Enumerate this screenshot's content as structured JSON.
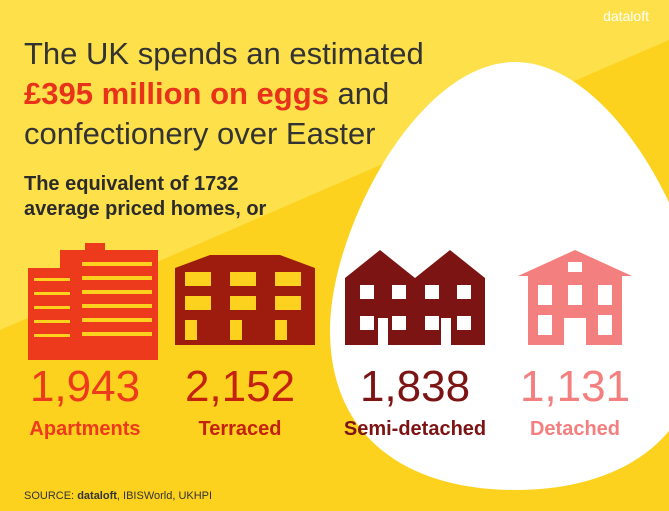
{
  "brand": "dataloft",
  "title": {
    "lines": [
      "The UK spends an estimated",
      "confectionery over Easter"
    ],
    "highlight": "£395 million on eggs",
    "highlight_tail": "and"
  },
  "subtitle": {
    "lines": [
      "The equivalent of 1732",
      "average priced homes, or"
    ]
  },
  "items": [
    {
      "value": "1,943",
      "label": "Apartments",
      "color": "#ee3a1c"
    },
    {
      "value": "2,152",
      "label": "Terraced",
      "color": "#c4210f"
    },
    {
      "value": "1,838",
      "label": "Semi-detached",
      "color": "#7d1414"
    },
    {
      "value": "1,131",
      "label": "Detached",
      "color": "#f47f7f"
    }
  ],
  "source": {
    "prefix": "SOURCE:",
    "brand": "dataloft",
    "rest": ", IBISWorld, UKHPI"
  }
}
